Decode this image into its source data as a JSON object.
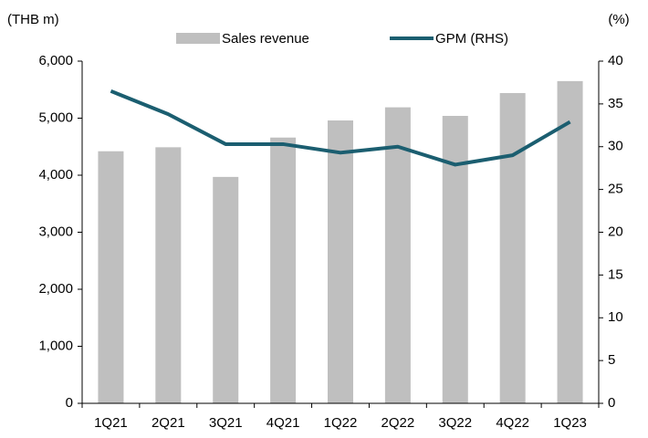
{
  "chart_data": {
    "type": "bar",
    "y_unit": "(THB m)",
    "y2_unit": "(%)",
    "categories": [
      "1Q21",
      "2Q21",
      "3Q21",
      "4Q21",
      "1Q22",
      "2Q22",
      "3Q22",
      "4Q22",
      "1Q23"
    ],
    "series": [
      {
        "name": "Sales revenue",
        "type": "bar",
        "color": "#bfbfbf",
        "values": [
          4420,
          4490,
          3970,
          4660,
          4960,
          5190,
          5040,
          5440,
          5650
        ]
      },
      {
        "name": "GPM (RHS)",
        "type": "line",
        "axis": "y2",
        "color": "#1b5e70",
        "values": [
          36.5,
          33.8,
          30.3,
          30.3,
          29.3,
          30.0,
          27.9,
          29.0,
          32.9
        ]
      }
    ],
    "ylim": [
      0,
      6000
    ],
    "yticks": [
      {
        "value": 0,
        "label": "0"
      },
      {
        "value": 1000,
        "label": "1,000"
      },
      {
        "value": 2000,
        "label": "2,000"
      },
      {
        "value": 3000,
        "label": "3,000"
      },
      {
        "value": 4000,
        "label": "4,000"
      },
      {
        "value": 5000,
        "label": "5,000"
      },
      {
        "value": 6000,
        "label": "6,000"
      }
    ],
    "y2lim": [
      0,
      40
    ],
    "y2ticks": [
      0,
      5,
      10,
      15,
      20,
      25,
      30,
      35,
      40
    ],
    "grid": false,
    "legend": "top"
  }
}
